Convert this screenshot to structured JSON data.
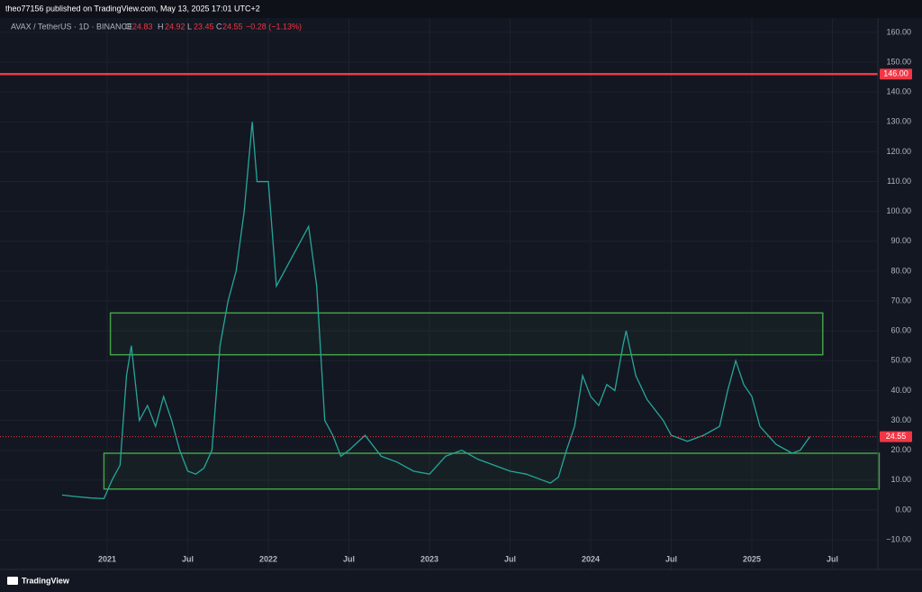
{
  "header": {
    "publisher": "theo77156 published on TradingView.com, May 13, 2025 17:01 UTC+2"
  },
  "legend": {
    "symbol": "AVAX / TetherUS · 1D · BINANCE",
    "open_label": "O",
    "open": 24.83,
    "high_label": "H",
    "high": 24.92,
    "low_label": "L",
    "low": 23.45,
    "close_label": "C",
    "close": 24.55,
    "change": "−0.28 (−1.13%)"
  },
  "footer": {
    "brand": "TradingView"
  },
  "chart_data": {
    "type": "line",
    "color": "#26a69a",
    "x": [
      2020.72,
      2020.8,
      2020.9,
      2020.98,
      2021.03,
      2021.08,
      2021.12,
      2021.15,
      2021.2,
      2021.25,
      2021.3,
      2021.35,
      2021.4,
      2021.45,
      2021.5,
      2021.55,
      2021.6,
      2021.65,
      2021.7,
      2021.75,
      2021.8,
      2021.85,
      2021.9,
      2021.93,
      2022.0,
      2022.05,
      2022.1,
      2022.15,
      2022.2,
      2022.25,
      2022.3,
      2022.35,
      2022.4,
      2022.45,
      2022.5,
      2022.6,
      2022.7,
      2022.8,
      2022.9,
      2023.0,
      2023.1,
      2023.2,
      2023.3,
      2023.4,
      2023.5,
      2023.6,
      2023.7,
      2023.75,
      2023.8,
      2023.85,
      2023.9,
      2023.95,
      2024.0,
      2024.05,
      2024.1,
      2024.15,
      2024.2,
      2024.22,
      2024.28,
      2024.35,
      2024.45,
      2024.5,
      2024.6,
      2024.7,
      2024.8,
      2024.85,
      2024.9,
      2024.95,
      2025.0,
      2025.05,
      2025.15,
      2025.25,
      2025.3,
      2025.36
    ],
    "values": [
      5,
      4.5,
      4,
      3.8,
      10,
      15,
      45,
      55,
      30,
      35,
      28,
      38,
      30,
      20,
      13,
      12,
      14,
      20,
      55,
      70,
      80,
      100,
      130,
      110,
      110,
      75,
      80,
      85,
      90,
      95,
      75,
      30,
      25,
      18,
      20,
      25,
      18,
      16,
      13,
      12,
      18,
      20,
      17,
      15,
      13,
      12,
      10,
      9,
      11,
      20,
      28,
      45,
      38,
      35,
      42,
      40,
      55,
      60,
      45,
      37,
      30,
      25,
      23,
      25,
      28,
      40,
      50,
      42,
      38,
      28,
      22,
      19,
      20,
      24.55
    ],
    "xlim": [
      2020.335,
      2025.782
    ],
    "xticks": [
      2021,
      {
        "value": 2021.5,
        "label": "Jul"
      },
      2022,
      {
        "value": 2022.5,
        "label": "Jul"
      },
      2023,
      {
        "value": 2023.5,
        "label": "Jul"
      },
      2024,
      {
        "value": 2024.5,
        "label": "Jul"
      },
      2025,
      {
        "value": 2025.5,
        "label": "Jul"
      }
    ],
    "ylim": [
      -13.3,
      164.2
    ],
    "yticks": [
      {
        "value": -10,
        "label": "−10.00"
      },
      {
        "value": 0,
        "label": "0.00"
      },
      {
        "value": 10,
        "label": "10.00"
      },
      {
        "value": 20,
        "label": "20.00"
      },
      {
        "value": 30,
        "label": "30.00"
      },
      {
        "value": 40,
        "label": "40.00"
      },
      {
        "value": 50,
        "label": "50.00"
      },
      {
        "value": 60,
        "label": "60.00"
      },
      {
        "value": 70,
        "label": "70.00"
      },
      {
        "value": 80,
        "label": "80.00"
      },
      {
        "value": 90,
        "label": "90.00"
      },
      {
        "value": 100,
        "label": "100.00"
      },
      {
        "value": 110,
        "label": "110.00"
      },
      {
        "value": 120,
        "label": "120.00"
      },
      {
        "value": 130,
        "label": "130.00"
      },
      {
        "value": 140,
        "label": "140.00"
      },
      {
        "value": 150,
        "label": "150.00"
      },
      {
        "value": 160,
        "label": "160.00"
      }
    ],
    "grid": true,
    "hline": {
      "value": 146,
      "label": "146.00",
      "color": "#f23645"
    },
    "last_price": 24.55,
    "zones": [
      {
        "x": [
          2021.02,
          2025.44
        ],
        "y": [
          52,
          66
        ],
        "color": "#43a047"
      },
      {
        "x": [
          2020.98,
          2025.79
        ],
        "y": [
          7,
          19
        ],
        "color": "#43a047"
      }
    ]
  }
}
